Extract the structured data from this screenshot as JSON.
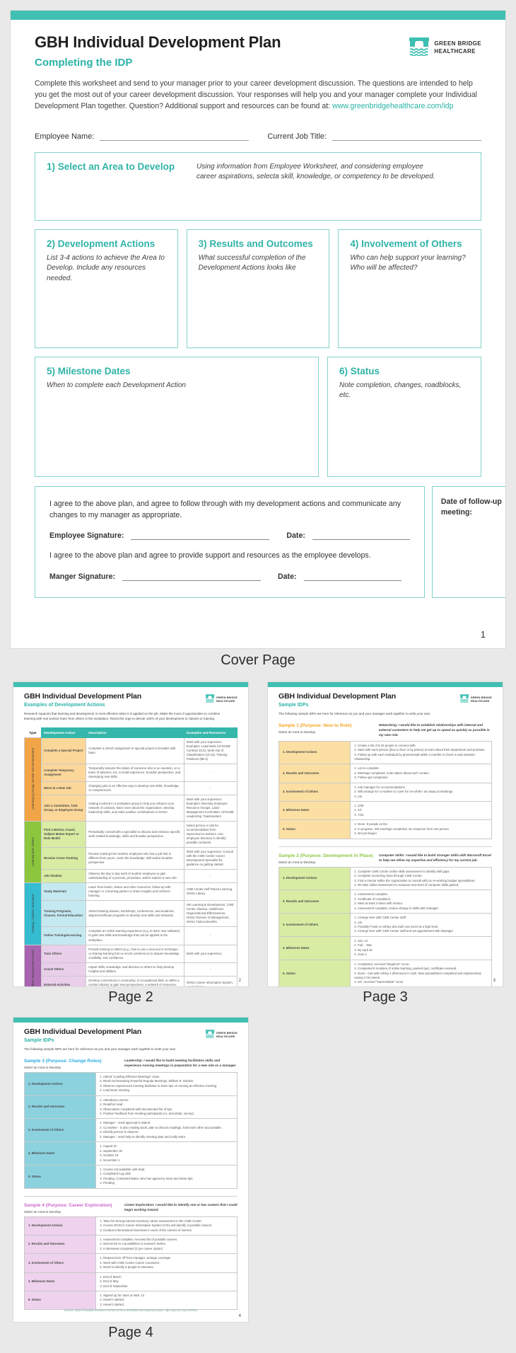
{
  "captions": {
    "cover": "Cover Page",
    "page2": "Page 2",
    "page3": "Page 3",
    "page4": "Page 4"
  },
  "logo": {
    "line1": "GREEN BRIDGE",
    "line2": "HEALTHCARE"
  },
  "colors": {
    "accent_teal": "#41bfb2",
    "subtitle_teal": "#2ab3a6",
    "table_header_teal": "#35b7ab"
  },
  "cover": {
    "title": "GBH Individual Development Plan",
    "subtitle": "Completing the IDP",
    "intro_text": "Complete this worksheet and send to your manager prior to your career development discussion. The questions are intended to help you get the most out of your career development discussion. Your responses will help you and your manager complete your Individual Development Plan together. Question? Additional support and resources can be found at: ",
    "intro_link": "www.greenbridgehealthcare.com/idp",
    "employee_name_label": "Employee Name:",
    "job_title_label": "Current Job Title:",
    "sections": [
      {
        "num_title": "1) Select an Area to Develop",
        "desc": "Using information from Employee Worksheet, and considering employee career aspirations, selecta skill, knowledge, or competency to be developed."
      },
      {
        "num_title": "2) Development Actions",
        "desc": "List 3-4 actions to achieve the Area to Develop.  Include any resources needed."
      },
      {
        "num_title": "3) Results and Outcomes",
        "desc": "What successful completion of the Development Actions looks like"
      },
      {
        "num_title": "4) Involvement of Others",
        "desc": "Who can help support your learning? Who will be affected?"
      },
      {
        "num_title": "5) Milestone Dates",
        "desc": "When to complete each Development Action"
      },
      {
        "num_title": "6) Status",
        "desc": "Note completion, changes, roadblocks, etc."
      }
    ],
    "agreement": {
      "employee_text": "I agree to the above plan, and agree to follow through with my development actions and communicate any changes to my manager as appropriate.",
      "employee_sig_label": "Employee Signature:",
      "date_label": "Date:",
      "manager_text": "I agree to the above plan and agree to provide support and resources as the employee develops.",
      "manager_sig_label": "Manger Signature:",
      "followup_label": "Date of follow-up meeting:"
    },
    "page_number": "1"
  },
  "page2": {
    "title": "GBH Individual Development Plan",
    "subtitle": "Examples of Development Actions",
    "intro": "Research supports that learning and development is most effective when it is applied on the job. Make the most of opportunities to combine learning with real work/or learn from others in the workplace. Resist the urge to devote 100% of your development to classes or training.",
    "page_number": "2",
    "table": {
      "headers": [
        "Type",
        "Development Action",
        "Description",
        "Examples and Resources"
      ],
      "groups": [
        {
          "type_label": "Learning by Doing: On-the-Job Development",
          "type_color": "#F2A547",
          "action_color": "#FBD799",
          "rows": [
            {
              "action": "Complete a Special Project",
              "description": "Complete a stretch assignment or special project to broaden skill base.",
              "examples": "Work with your supervisor. Examples: Lead Work (AFSCME Contract 10.5), Work Out of Classification (10.10), Training Positions (5B.4)"
            },
            {
              "action": "Complete Temporary Assignment",
              "description": "Temporarily assume the duties of someone who is on vacation, on a leave of absence, etc. to build experience, broaden perspective, and developing new skills.",
              "examples": "-"
            },
            {
              "action": "Move to a New Job",
              "description": "Changing jobs is an effective way to develop new skills, knowledge, or competencies.",
              "examples": "-"
            },
            {
              "action": "Join a Committee, Task Group, or Employee Group",
              "description": "Getting involved in a workplace group to help you enhance your network of contacts, learn more about the organization, develop leadership skills, and make positive contributions to OHSU.",
              "examples": "Work with your supervisor. Examples: Diversity Employee Resource Groups, Labor Management Committee, AFSCME Leadership, Toastmasters"
            }
          ]
        },
        {
          "type_label": "Learning from Others",
          "type_color": "#8CC63E",
          "action_color": "#D8ECA4",
          "rows": [
            {
              "action": "Find a Mentor, Coach, Subject Matter Expert or Role Model",
              "description": "Periodically consult with a specialist to discuss and enhance specific work-related knowledge, skills and broaden perspective.",
              "examples": "Select person or ask for recommendation from supervisor/co-workers. Use employee directory to identify possible contracts."
            },
            {
              "action": "Receive Cross-Training",
              "description": "Receive training from another employee who has a job that is different from yours. Learn the knowledge, skill and/or broaden perspective.",
              "examples": "Work with your supervisor. Consult with the CWE Center Career Development Specialist for guidance on getting started."
            },
            {
              "action": "Job Shadow",
              "description": "Observe the day to day work of another employee to gain understanding of a process, procedure, and/or explore a new role.",
              "examples": "-"
            }
          ]
        },
        {
          "type_label": "Training, Classes, Education",
          "type_color": "#35BCD1",
          "action_color": "#C5E9F1",
          "rows": [
            {
              "action": "Study Materials",
              "description": "Learn from books, videos and other resources; follow-up with manager or a learning partner to share insights and reinforce learning.",
              "examples": "CWE Center Self-Paced Learning, OHSU Library"
            },
            {
              "action": "Training Programs, Classes, Formal Education",
              "description": "Attend training classes, workshops, conferences, and academic degree/certificate programs to develop new skills and networks.",
              "examples": "HR Learning & Development, CWE Center Classes, Healthcare Organizational Effectiveness, OHSU Division of Management, OHSU Tuition Benefits"
            },
            {
              "action": "Online Training/eLearning",
              "description": "Complete an online learning experience (e.g. to learn new software) to gain new skills and knowledge that can be applied to the workplace.",
              "examples": "-"
            }
          ]
        },
        {
          "type_label": "Other Development Actions",
          "type_color": "#A864AE",
          "action_color": "#E9CFEA",
          "rows": [
            {
              "action": "Train Others",
              "description": "Provide training to others (e.g., how to use a new tool or technique, or sharing learning from a recent conference) to deepen knowledge, credibility, and confidence.",
              "examples": "Work with your supervisor."
            },
            {
              "action": "Coach Others",
              "description": "Impart skills, knowledge, and direction to others to help develop insights and abilities.",
              "examples": "-"
            },
            {
              "action": "External Activities",
              "description": "Develop connections in community, in occupational field, or within a certain industry to gain new perspectives, a network of resources, and develop expertise.",
              "examples": "OHSU Career Information System, Local Library"
            }
          ]
        }
      ]
    }
  },
  "page3": {
    "title": "GBH Individual Development Plan",
    "subtitle": "Sample IDPs",
    "intro": "The following sample IDPs are here for reference as you and your manager work together to write your own.",
    "page_number": "3",
    "samples": [
      {
        "title": "Sample 1 (Purpose: New to Role)",
        "title_color": "#F5A623",
        "select_label": "Select an Area to Develop",
        "goal": "Networking:  I would like to establish relationships with internal and external customers to help me get up to speed as quickly as possible in my new role.",
        "label_color": "#FBDFA3",
        "rows": [
          {
            "label": "1. Development Actions",
            "items": [
              "1. Create a list of 5-10 people to connect with.",
              "2. Meet with each person (face to face or by phone) to learn about their department and priorities.",
              "3. Follow up with each individual by phone/email within 3 months to check in and maintain relationship."
            ]
          },
          {
            "label": "2. Results and Outcomes",
            "items": [
              "1. List is complete.",
              "2. Meetings completed, notes taken about each contact.",
              "3. Follow ups completed."
            ]
          },
          {
            "label": "3. Involvement of Others",
            "items": [
              "1. Ask manager for recommendations.",
              "2. Will arrange for co-worker to cover for me while I am away at meetings.",
              "3. n/a"
            ]
          },
          {
            "label": "4. Milestone Dates",
            "items": [
              "1. 2/28",
              "2. 4/1",
              "3. 7/15"
            ]
          },
          {
            "label": "5. Status",
            "items": [
              "1. Done. 8 people on list.",
              "2. In progress. 3/8 meetings completed. No response from one person.",
              "3. Not yet begun"
            ]
          }
        ]
      },
      {
        "title": "Sample 2 (Purpose: Development in Place)",
        "title_color": "#8CC63E",
        "select_label": "Select an Area to Develop",
        "goal": "Computer Skills:  I would like to build stronger skills with Microsoft Excel to help me refine my expertise and efficiency for my current job.",
        "label_color": "#D8ECA4",
        "rows": [
          {
            "label": "1. Development Actions",
            "items": [
              "1. Complete CWE Center online skills assessment to identify skill gaps.",
              "2. Complete eLearning class through CWE Center.",
              "3. Find a mentor within the organization to consult with on re-working budget spreadsheet.",
              "4. Re-take online assessment to measure new level of computer skills gained."
            ]
          },
          {
            "label": "2. Results and Outcomes",
            "items": [
              "1. Assessment complete.",
              "2. Certificate of completion.",
              "3. Meet at least 3 times with mentor.",
              "4. Assessment complete, review change in skills with manager."
            ]
          },
          {
            "label": "3. Involvement of Others",
            "items": [
              "1. Arrange time with CWE Center staff.",
              "2. n/a",
              "3. Possibly Frank or Ashley who both use Excel at a high level.",
              "4. Arrange time with CWE Center staff and set appointment with Manager."
            ]
          },
          {
            "label": "4. Milestone Dates",
            "items": [
              "1. Jan. 12",
              "2. Feb. - Mar.",
              "3. By April 15",
              "4. June 1"
            ]
          },
          {
            "label": "5. Status",
            "items": [
              "1. Completed, received \"Beginner\" score.",
              "2. Completed 8 modules of online learning, passed quiz, certificate received.",
              "3. Done - met with Ashley 4 afternoons in April. New spreadsheet completed and implemented, saving 2 hrs./week.",
              "4. 6/1, received \"Intermediate\" score"
            ]
          }
        ]
      }
    ]
  },
  "page4": {
    "title": "GBH Individual Development Plan",
    "subtitle": "Sample IDPs",
    "intro": "The following sample IDPs are here for reference as you and your manager work together to write your own.",
    "page_number": "4",
    "source": "Source: https://studylib.net/doc/15978672/ohsu-individual-development-plan--idp-step-by-step-welcom",
    "samples": [
      {
        "title": "Sample 3 (Purpose: Change Roles)",
        "title_color": "#29ABE2",
        "select_label": "Select an Area to Develop",
        "goal": "Leadership:  I would like to build meeting facilitation skills and experience running meetings in preparation for a new role as a manager.",
        "label_color": "#8BD2DE",
        "rows": [
          {
            "label": "1. Development Actions",
            "items": [
              "1. Attend \"Leading Effective Meetings\" class.",
              "2. Read Orchestrating Powerful Regular Meetings, William R. Daniels",
              "3. Observe experienced meeting facilitator to learn tips on running an effective meeting.",
              "4. Lead team meeting."
            ]
          },
          {
            "label": "2. Results and Outcomes",
            "items": [
              "1. Attendance yes/no.",
              "2. Read/not read",
              "3. Observation completed with documented list of tips.",
              "4. Positive feedback from meeting participants (i.e. anecdotal, survey)."
            ]
          },
          {
            "label": "3. Involvement of Others",
            "items": [
              "1. Manager - need approval to attend.",
              "2. Co-worker - is also reading book, plan to discuss readings, hold each other accountable.",
              "3. Identify person to observe.",
              "4. Manager - need help to identify meeting date and notify team."
            ]
          },
          {
            "label": "4. Milestone Dates",
            "items": [
              "1. August 31",
              "2. September 30",
              "3. October 15",
              "4. November 1"
            ]
          },
          {
            "label": "5. Status",
            "items": [
              "1. Course not available until Sept.",
              "2. Completed Aug 15th",
              "3. Pending. Contacted Maria, who has agreed to meet and share tips.",
              "4. Pending"
            ]
          }
        ]
      },
      {
        "title": "Sample 4 (Purpose: Career Exploration)",
        "title_color": "#CC66C9",
        "select_label": "Select an Area to Develop",
        "goal": "Career Exploration:  I would like to identify one or two careers that I could begin working toward.",
        "label_color": "#EFD2EE",
        "rows": [
          {
            "label": "1. Development Actions",
            "items": [
              "1. Take the Strong Interest Inventory career assessment in the CWE Center.",
              "2. Access OHSU's Career Information System (CIS) and identify 3 possible careers.",
              "3. Conduct informational interviews in each of the careers of interest."
            ]
          },
          {
            "label": "2. Results and Outcomes",
            "items": [
              "1. Assessment complete, received list of possible careers.",
              "2. Narrow list to 3 possibilities to research further.",
              "3. 6 interviews completed (2 per career option)"
            ]
          },
          {
            "label": "3. Involvement of Others",
            "items": [
              "1. Request time off from manager, arrange coverage.",
              "2. Work with CWE Center Career Counselor.",
              "3. Need to identify 6 people to interview."
            ]
          },
          {
            "label": "4. Milestone Dates",
            "items": [
              "1. End of March",
              "2. End of May",
              "3. End of September"
            ]
          },
          {
            "label": "5. Status",
            "items": [
              "1. Signed up for class on Mar. 12",
              "2. Haven't started.",
              "3. Haven't started."
            ]
          }
        ]
      }
    ]
  }
}
